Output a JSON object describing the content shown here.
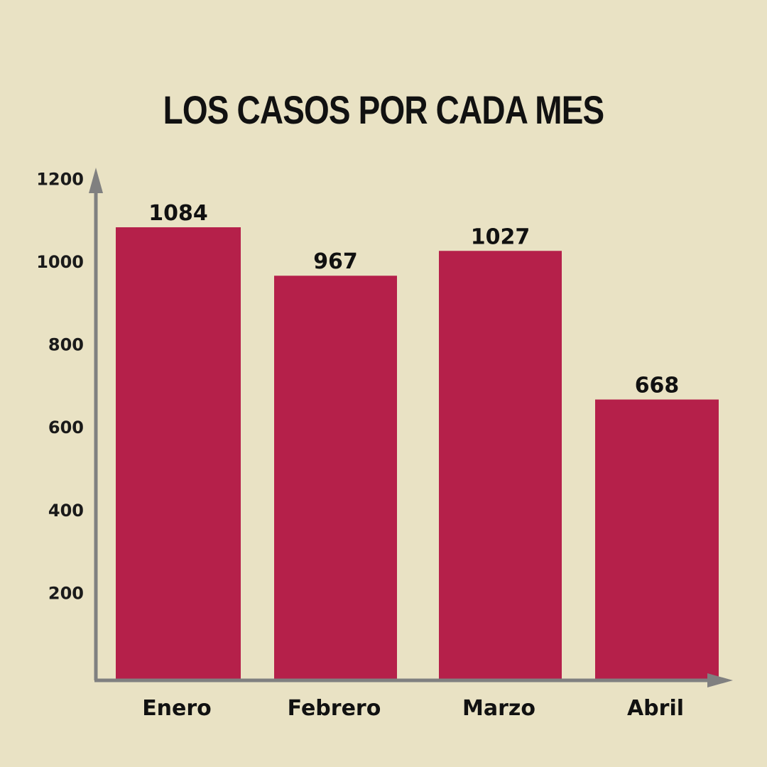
{
  "chart_data": {
    "type": "bar",
    "title": "LOS CASOS POR CADA MES",
    "categories": [
      "Enero",
      "Febrero",
      "Marzo",
      "Abril"
    ],
    "values": [
      1084,
      967,
      1027,
      668
    ],
    "yticks": [
      200,
      400,
      600,
      800,
      1000,
      1200
    ],
    "ylim": [
      0,
      1200
    ],
    "xlabel": "",
    "ylabel": "",
    "grid": false,
    "colors": {
      "bar": "#B5204A",
      "axis": "#808080",
      "background": "#E9E2C4"
    }
  }
}
